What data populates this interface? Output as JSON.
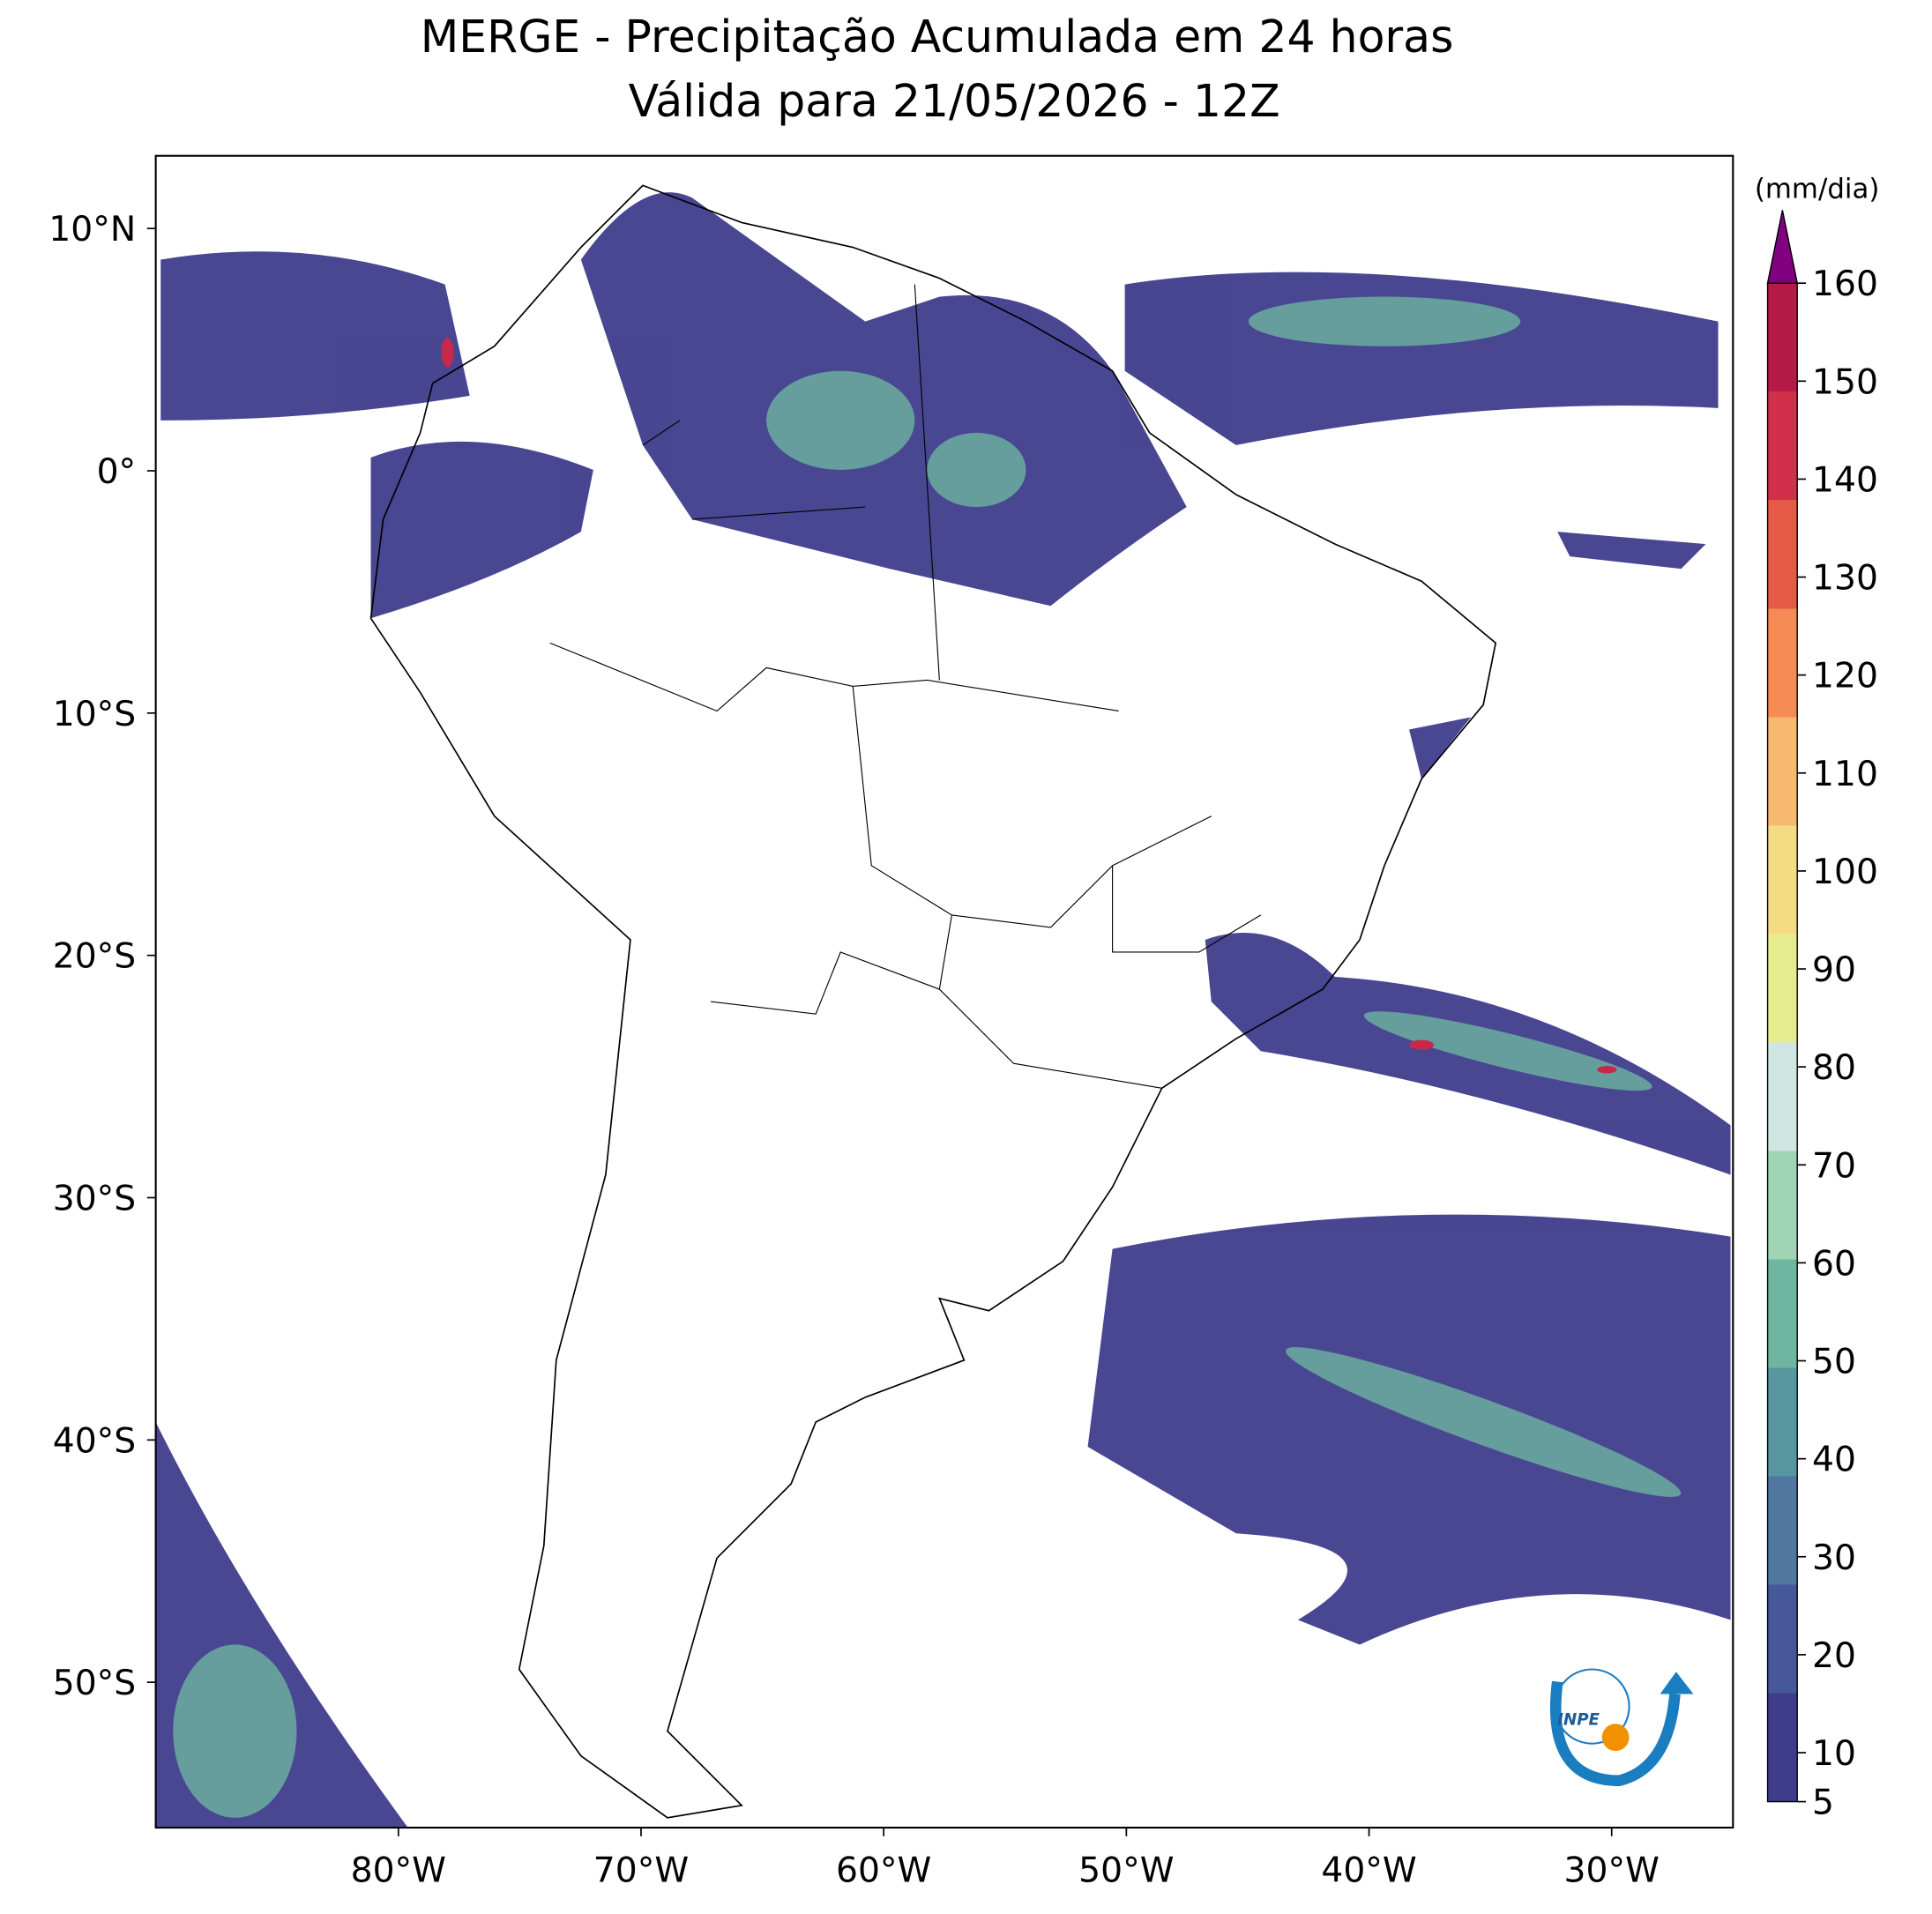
{
  "map": {
    "title": "MERGE - Precipitação Acumulada em 24 horas",
    "subtitle": "Válida para 21/05/2026 - 12Z",
    "xlim": [
      -90,
      -25
    ],
    "ylim": [
      -56,
      13
    ],
    "xticks": [
      {
        "value": -80,
        "label": "80°W"
      },
      {
        "value": -70,
        "label": "70°W"
      },
      {
        "value": -60,
        "label": "60°W"
      },
      {
        "value": -50,
        "label": "50°W"
      },
      {
        "value": -40,
        "label": "40°W"
      },
      {
        "value": -30,
        "label": "30°W"
      }
    ],
    "yticks": [
      {
        "value": 10,
        "label": "10°N"
      },
      {
        "value": 0,
        "label": "0°"
      },
      {
        "value": -10,
        "label": "10°S"
      },
      {
        "value": -20,
        "label": "20°S"
      },
      {
        "value": -30,
        "label": "30°S"
      },
      {
        "value": -40,
        "label": "40°S"
      },
      {
        "value": -50,
        "label": "50°S"
      }
    ],
    "colorbar": {
      "label": "(mm/dia)",
      "lim": [
        5,
        160
      ],
      "ticks": [
        5,
        10,
        20,
        30,
        40,
        50,
        60,
        70,
        80,
        90,
        100,
        110,
        120,
        130,
        140,
        150,
        160
      ],
      "colors": [
        "#3f3c8c",
        "#46579a",
        "#4f77a0",
        "#5a96a0",
        "#6fb5a0",
        "#9fd4b4",
        "#cfe6e2",
        "#e6ec90",
        "#f3dc84",
        "#f7b870",
        "#f68a55",
        "#e65a48",
        "#d0304a",
        "#b51a48"
      ],
      "extend_color": "#800080"
    },
    "logo": "INPE"
  }
}
